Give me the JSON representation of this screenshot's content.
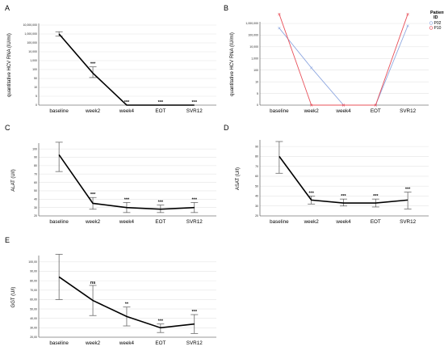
{
  "chart_data": [
    {
      "panel": "A",
      "type": "line",
      "ylabel": "quantitative HCV RNA (IU/ml)",
      "categories": [
        "baseline",
        "week2",
        "week4",
        "EOT",
        "SVR12"
      ],
      "yticks": [
        "0",
        "5",
        "10",
        "50",
        "100",
        "1,000",
        "10,000",
        "100,000",
        "1,000,000",
        "10,000,000"
      ],
      "values": [
        8,
        3.6,
        0,
        0,
        0
      ],
      "err_low": [
        7.75,
        3.1,
        0,
        0,
        0
      ],
      "err_high": [
        8.25,
        4.3,
        0,
        0,
        0
      ],
      "annotations": [
        "",
        "***",
        "***",
        "***",
        "***"
      ]
    },
    {
      "panel": "B",
      "type": "line",
      "ylabel": "quantitative HCV RNA (IU/ml)",
      "categories": [
        "baseline",
        "week2",
        "week4",
        "EOT",
        "SVR12"
      ],
      "yticks": [
        "0",
        "5",
        "10",
        "100",
        "1,000",
        "10,000",
        "100,000",
        "1,000,000"
      ],
      "legend": {
        "title": "Patient ID",
        "position": "top-right"
      },
      "series": [
        {
          "name": "P02",
          "color": "#8fa8e0",
          "values": [
            6.6,
            3.2,
            0,
            0,
            6.8
          ]
        },
        {
          "name": "P10",
          "color": "#e8505a",
          "values": [
            7.8,
            0,
            0,
            0,
            7.8
          ]
        }
      ]
    },
    {
      "panel": "C",
      "type": "line",
      "ylabel": "ALAT (U/l)",
      "categories": [
        "baseline",
        "week2",
        "week4",
        "EOT",
        "SVR12"
      ],
      "yticks": [
        "20",
        "30",
        "40",
        "50",
        "60",
        "70",
        "80",
        "90",
        "100"
      ],
      "ylim": [
        20,
        105
      ],
      "values": [
        93,
        35,
        30,
        28,
        30
      ],
      "err_low": [
        73,
        28,
        24,
        24,
        24
      ],
      "err_high": [
        108,
        42,
        36,
        33,
        36
      ],
      "annotations": [
        "",
        "***",
        "***",
        "***",
        "***"
      ]
    },
    {
      "panel": "D",
      "type": "line",
      "ylabel": "ASAT (U/l)",
      "categories": [
        "baseline",
        "week2",
        "week4",
        "EOT",
        "SVR12"
      ],
      "yticks": [
        "20",
        "30",
        "40",
        "50",
        "60",
        "70",
        "80",
        "90"
      ],
      "ylim": [
        20,
        95
      ],
      "values": [
        80,
        36,
        33,
        33,
        36
      ],
      "err_low": [
        63,
        32,
        30,
        29,
        27
      ],
      "err_high": [
        95,
        40,
        37,
        37,
        44
      ],
      "annotations": [
        "",
        "***",
        "***",
        "***",
        "***"
      ]
    },
    {
      "panel": "E",
      "type": "line",
      "ylabel": "GGT (U/l)",
      "categories": [
        "baseline",
        "week2",
        "week4",
        "EOT",
        "SVR12"
      ],
      "yticks": [
        "20,00",
        "30,00",
        "40,00",
        "50,00",
        "60,00",
        "70,00",
        "80,00",
        "90,00",
        "100,00"
      ],
      "ylim": [
        20,
        105
      ],
      "values": [
        84,
        59,
        42,
        30,
        34
      ],
      "err_low": [
        60,
        43,
        32,
        25,
        24
      ],
      "err_high": [
        108,
        75,
        52,
        34,
        44
      ],
      "annotations": [
        "",
        "ns",
        "**",
        "***",
        "***"
      ]
    }
  ]
}
